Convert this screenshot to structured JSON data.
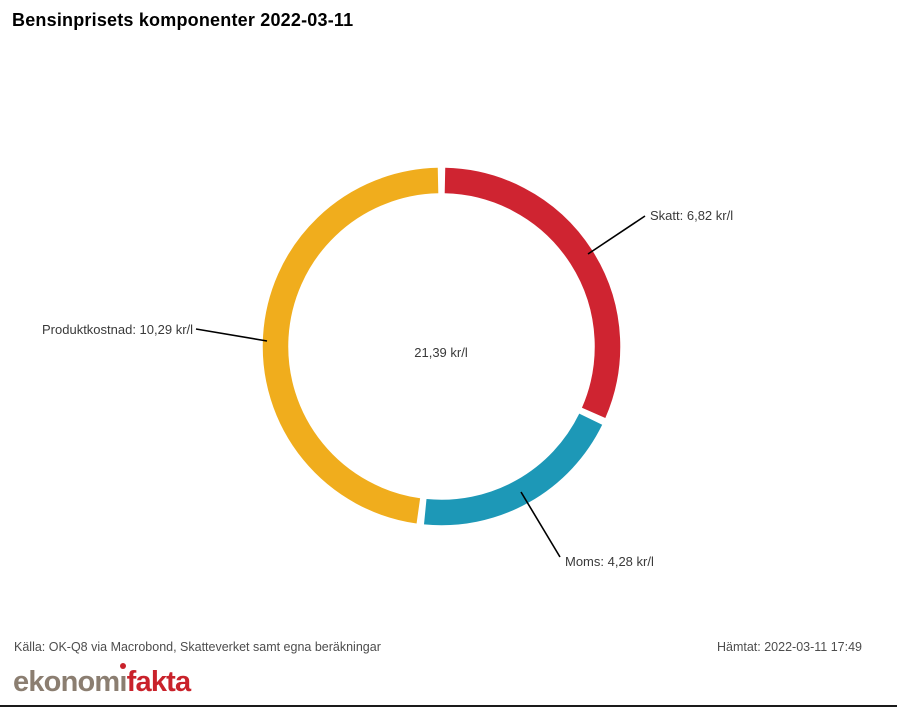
{
  "title": "Bensinprisets komponenter 2022-03-11",
  "chart_data": {
    "type": "pie",
    "subtype": "donut",
    "title": "Bensinprisets komponenter 2022-03-11",
    "unit": "kr/l",
    "total": 21.39,
    "center_label": "21,39 kr/l",
    "start_angle_deg": 0,
    "direction": "clockwise",
    "legend_position": "callout-labels",
    "slices": [
      {
        "name": "Skatt",
        "value": 6.82,
        "label": "Skatt: 6,82 kr/l",
        "color": "#cf2431"
      },
      {
        "name": "Moms",
        "value": 4.28,
        "label": "Moms: 4,28 kr/l",
        "color": "#1d98b7"
      },
      {
        "name": "Produktkostnad",
        "value": 10.29,
        "label": "Produktkostnad: 10,29 kr/l",
        "color": "#f0ad1d"
      }
    ]
  },
  "footer": {
    "source": "Källa: OK-Q8 via Macrobond, Skatteverket samt egna beräkningar",
    "retrieved": "Hämtat: 2022-03-11 17:49"
  },
  "logo": {
    "part1": "ekonom",
    "i_char": "ı",
    "part2": "fakta"
  }
}
